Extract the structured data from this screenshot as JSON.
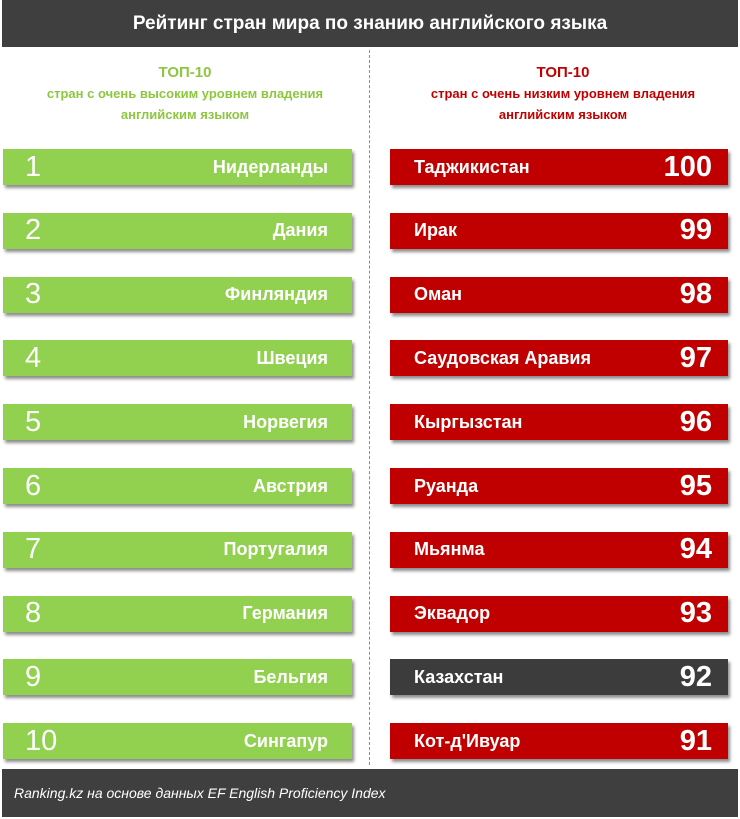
{
  "title": "Рейтинг стран мира по знанию английского языка",
  "left_header": {
    "top": "ТОП-10",
    "line1": "стран с очень высоким уровнем владения",
    "line2": "английским языком"
  },
  "right_header": {
    "top": "ТОП-10",
    "line1": "стран с очень низким уровнем владения",
    "line2": "английским языком"
  },
  "colors": {
    "good": "#92d050",
    "bad": "#c00000",
    "highlight": "#3c3c3c",
    "header_bar": "#3f3f3f"
  },
  "chart_data": {
    "type": "table",
    "title": "Рейтинг стран мира по знанию английского языка",
    "top_high": [
      {
        "rank": "1",
        "country": "Нидерланды"
      },
      {
        "rank": "2",
        "country": "Дания"
      },
      {
        "rank": "3",
        "country": "Финляндия"
      },
      {
        "rank": "4",
        "country": "Швеция"
      },
      {
        "rank": "5",
        "country": "Норвегия"
      },
      {
        "rank": "6",
        "country": "Австрия"
      },
      {
        "rank": "7",
        "country": "Португалия"
      },
      {
        "rank": "8",
        "country": "Германия"
      },
      {
        "rank": "9",
        "country": "Бельгия"
      },
      {
        "rank": "10",
        "country": "Сингапур"
      }
    ],
    "top_low": [
      {
        "country": "Таджикистан",
        "rank": "100",
        "highlight": false
      },
      {
        "country": "Ирак",
        "rank": "99",
        "highlight": false
      },
      {
        "country": "Оман",
        "rank": "98",
        "highlight": false
      },
      {
        "country": "Саудовская Аравия",
        "rank": "97",
        "highlight": false
      },
      {
        "country": "Кыргызстан",
        "rank": "96",
        "highlight": false
      },
      {
        "country": "Руанда",
        "rank": "95",
        "highlight": false
      },
      {
        "country": "Мьянма",
        "rank": "94",
        "highlight": false
      },
      {
        "country": "Эквадор",
        "rank": "93",
        "highlight": false
      },
      {
        "country": "Казахстан",
        "rank": "92",
        "highlight": true
      },
      {
        "country": "Кот-д'Ивуар",
        "rank": "91",
        "highlight": false
      }
    ]
  },
  "footer": "Ranking.kz на основе данных EF English Proficiency Index"
}
